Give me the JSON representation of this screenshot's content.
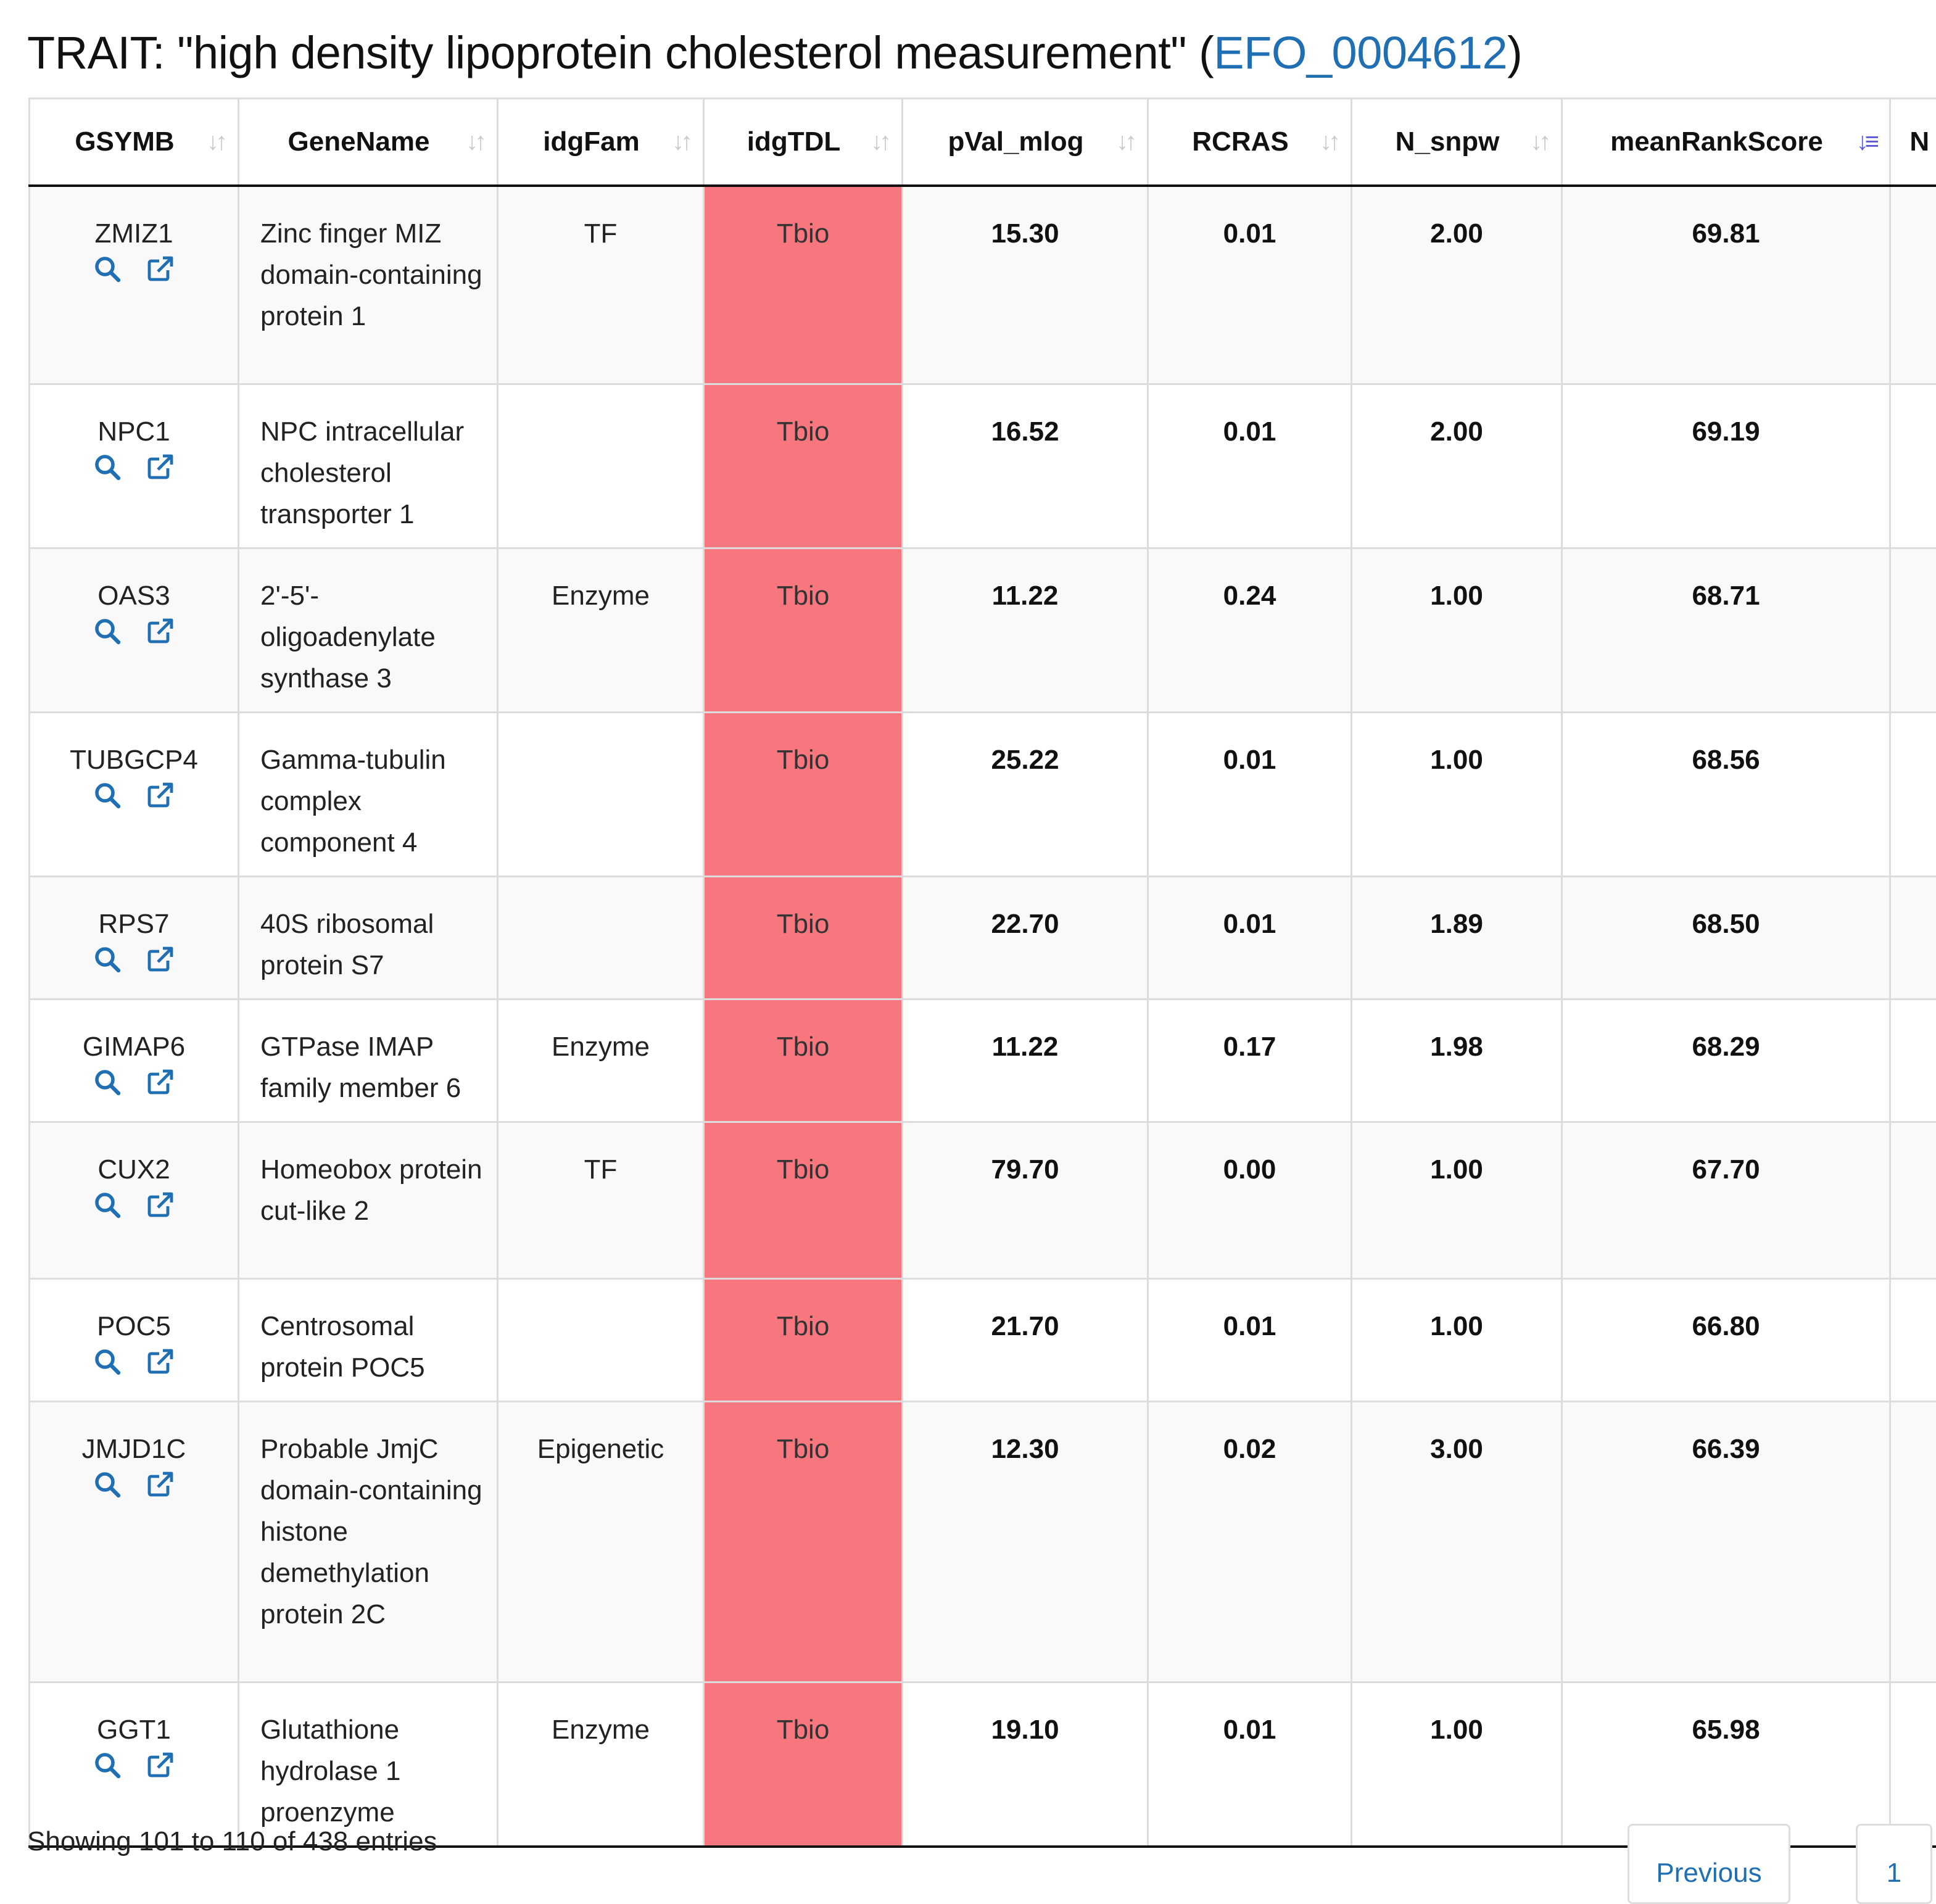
{
  "header": {
    "title_prefix": "TRAIT: \"high density lipoprotein cholesterol measurement\" (",
    "efo_id": "EFO_0004612",
    "title_suffix": ")"
  },
  "colors": {
    "link": "#1f6fb2",
    "tdl_tbio": "#f8777f",
    "sort_active": "#5a5ad8",
    "sort_inactive": "#c9c9c9"
  },
  "columns": [
    "GSYMB",
    "GeneName",
    "idgFam",
    "idgTDL",
    "pVal_mlog",
    "RCRAS",
    "N_snpw",
    "meanRankScore",
    "N"
  ],
  "sorted_column": "meanRankScore",
  "sort_icons": {
    "default": "↓↑",
    "active": "↓≡"
  },
  "row_icons": [
    "search-icon",
    "external-link-icon"
  ],
  "rows": [
    {
      "gsymb": "ZMIZ1",
      "gene": "Zinc finger MIZ domain-containing protein 1",
      "fam": "TF",
      "tdl": "Tbio",
      "pval": "15.30",
      "rcras": "0.01",
      "nsnpw": "2.00",
      "mrs": "69.81"
    },
    {
      "gsymb": "NPC1",
      "gene": "NPC intracellular cholesterol transporter 1",
      "fam": "",
      "tdl": "Tbio",
      "pval": "16.52",
      "rcras": "0.01",
      "nsnpw": "2.00",
      "mrs": "69.19"
    },
    {
      "gsymb": "OAS3",
      "gene": "2'-5'-oligoadenylate synthase 3",
      "fam": "Enzyme",
      "tdl": "Tbio",
      "pval": "11.22",
      "rcras": "0.24",
      "nsnpw": "1.00",
      "mrs": "68.71"
    },
    {
      "gsymb": "TUBGCP4",
      "gene": "Gamma-tubulin complex component 4",
      "fam": "",
      "tdl": "Tbio",
      "pval": "25.22",
      "rcras": "0.01",
      "nsnpw": "1.00",
      "mrs": "68.56"
    },
    {
      "gsymb": "RPS7",
      "gene": "40S ribosomal protein S7",
      "fam": "",
      "tdl": "Tbio",
      "pval": "22.70",
      "rcras": "0.01",
      "nsnpw": "1.89",
      "mrs": "68.50"
    },
    {
      "gsymb": "GIMAP6",
      "gene": "GTPase IMAP family member 6",
      "fam": "Enzyme",
      "tdl": "Tbio",
      "pval": "11.22",
      "rcras": "0.17",
      "nsnpw": "1.98",
      "mrs": "68.29"
    },
    {
      "gsymb": "CUX2",
      "gene": "Homeobox protein cut-like 2",
      "fam": "TF",
      "tdl": "Tbio",
      "pval": "79.70",
      "rcras": "0.00",
      "nsnpw": "1.00",
      "mrs": "67.70"
    },
    {
      "gsymb": "POC5",
      "gene": "Centrosomal protein POC5",
      "fam": "",
      "tdl": "Tbio",
      "pval": "21.70",
      "rcras": "0.01",
      "nsnpw": "1.00",
      "mrs": "66.80"
    },
    {
      "gsymb": "JMJD1C",
      "gene": "Probable JmjC domain-containing histone demethylation protein 2C",
      "fam": "Epigenetic",
      "tdl": "Tbio",
      "pval": "12.30",
      "rcras": "0.02",
      "nsnpw": "3.00",
      "mrs": "66.39"
    },
    {
      "gsymb": "GGT1",
      "gene": "Glutathione hydrolase 1 proenzyme",
      "fam": "Enzyme",
      "tdl": "Tbio",
      "pval": "19.10",
      "rcras": "0.01",
      "nsnpw": "1.00",
      "mrs": "65.98"
    }
  ],
  "footer": {
    "info": "Showing 101 to 110 of 438 entries",
    "previous_label": "Previous",
    "page_label": "1"
  }
}
